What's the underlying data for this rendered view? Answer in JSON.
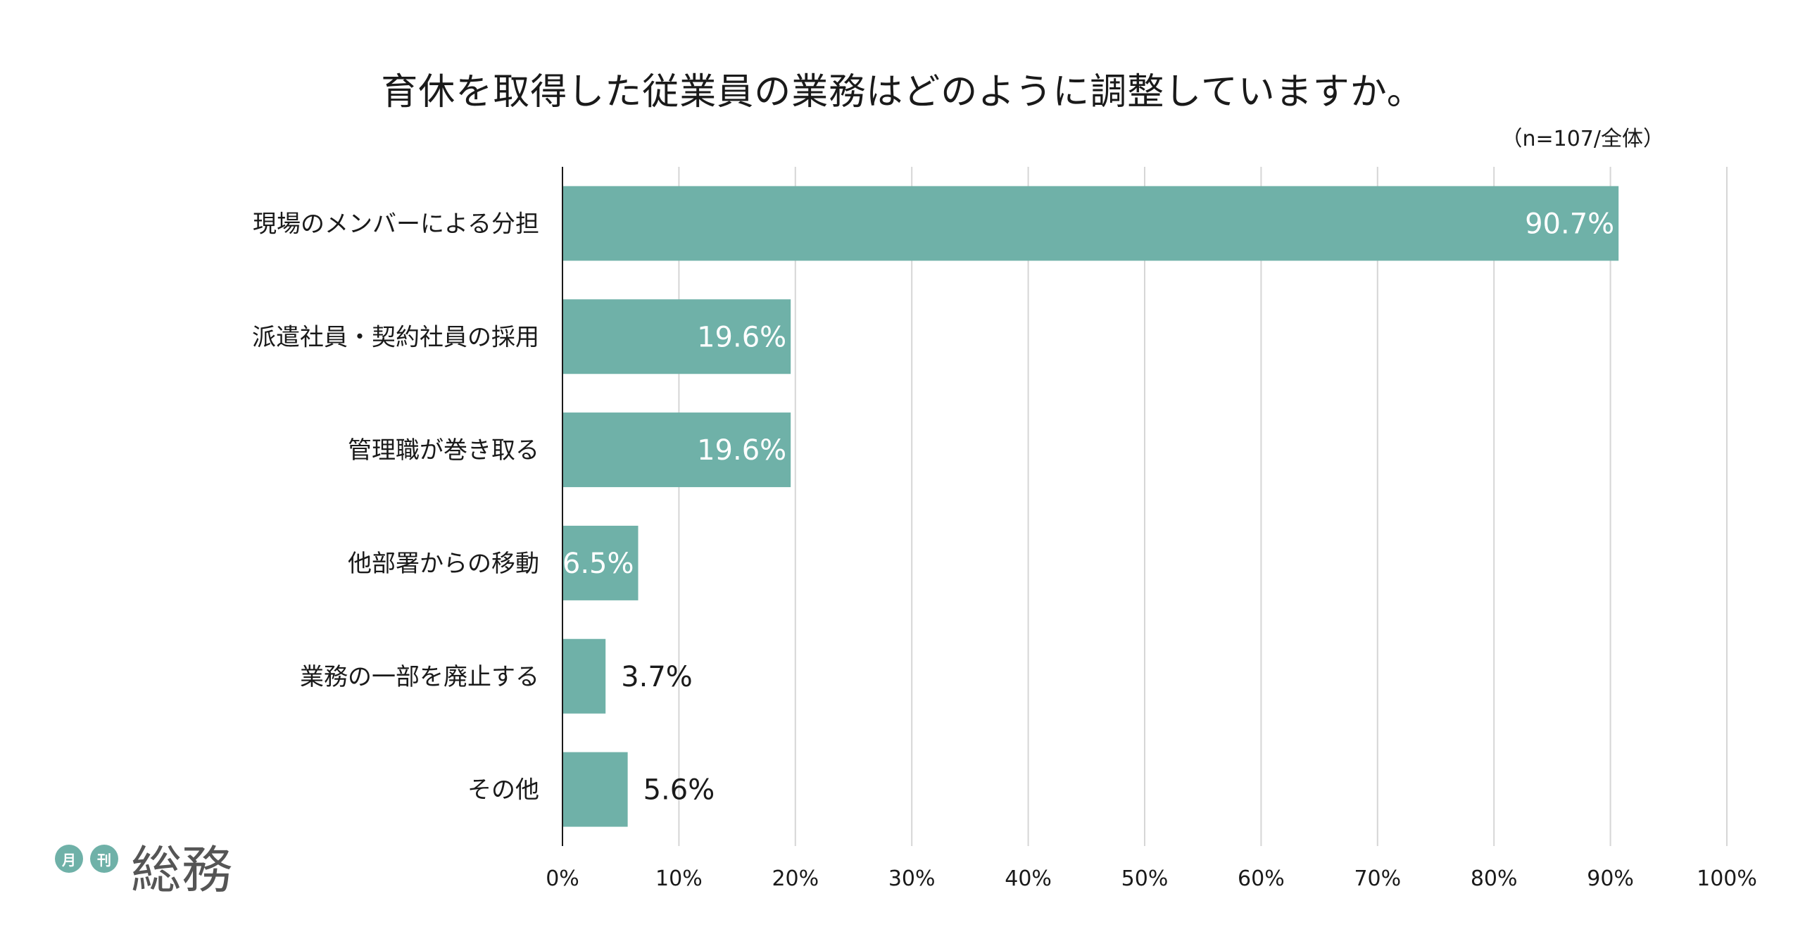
{
  "chart_data": {
    "type": "bar",
    "orientation": "horizontal",
    "title": "育休を取得した従業員の業務はどのように調整していますか。",
    "subtitle": "（n=107/全体）",
    "categories": [
      "現場のメンバーによる分担",
      "派遣社員・契約社員の採用",
      "管理職が巻き取る",
      "他部署からの移動",
      "業務の一部を廃止する",
      "その他"
    ],
    "values": [
      90.7,
      19.6,
      19.6,
      6.5,
      3.7,
      5.6
    ],
    "value_labels": [
      "90.7%",
      "19.6%",
      "19.6%",
      "6.5%",
      "3.7%",
      "5.6%"
    ],
    "xlim": [
      0,
      100
    ],
    "xticks": [
      0,
      10,
      20,
      30,
      40,
      50,
      60,
      70,
      80,
      90,
      100
    ],
    "xtick_labels": [
      "0%",
      "10%",
      "20%",
      "30%",
      "40%",
      "50%",
      "60%",
      "70%",
      "80%",
      "90%",
      "100%"
    ],
    "grid": true,
    "bar_color": "#6fb1a8"
  },
  "logo": {
    "badge1": "月",
    "badge2": "刊",
    "name": "総務"
  }
}
